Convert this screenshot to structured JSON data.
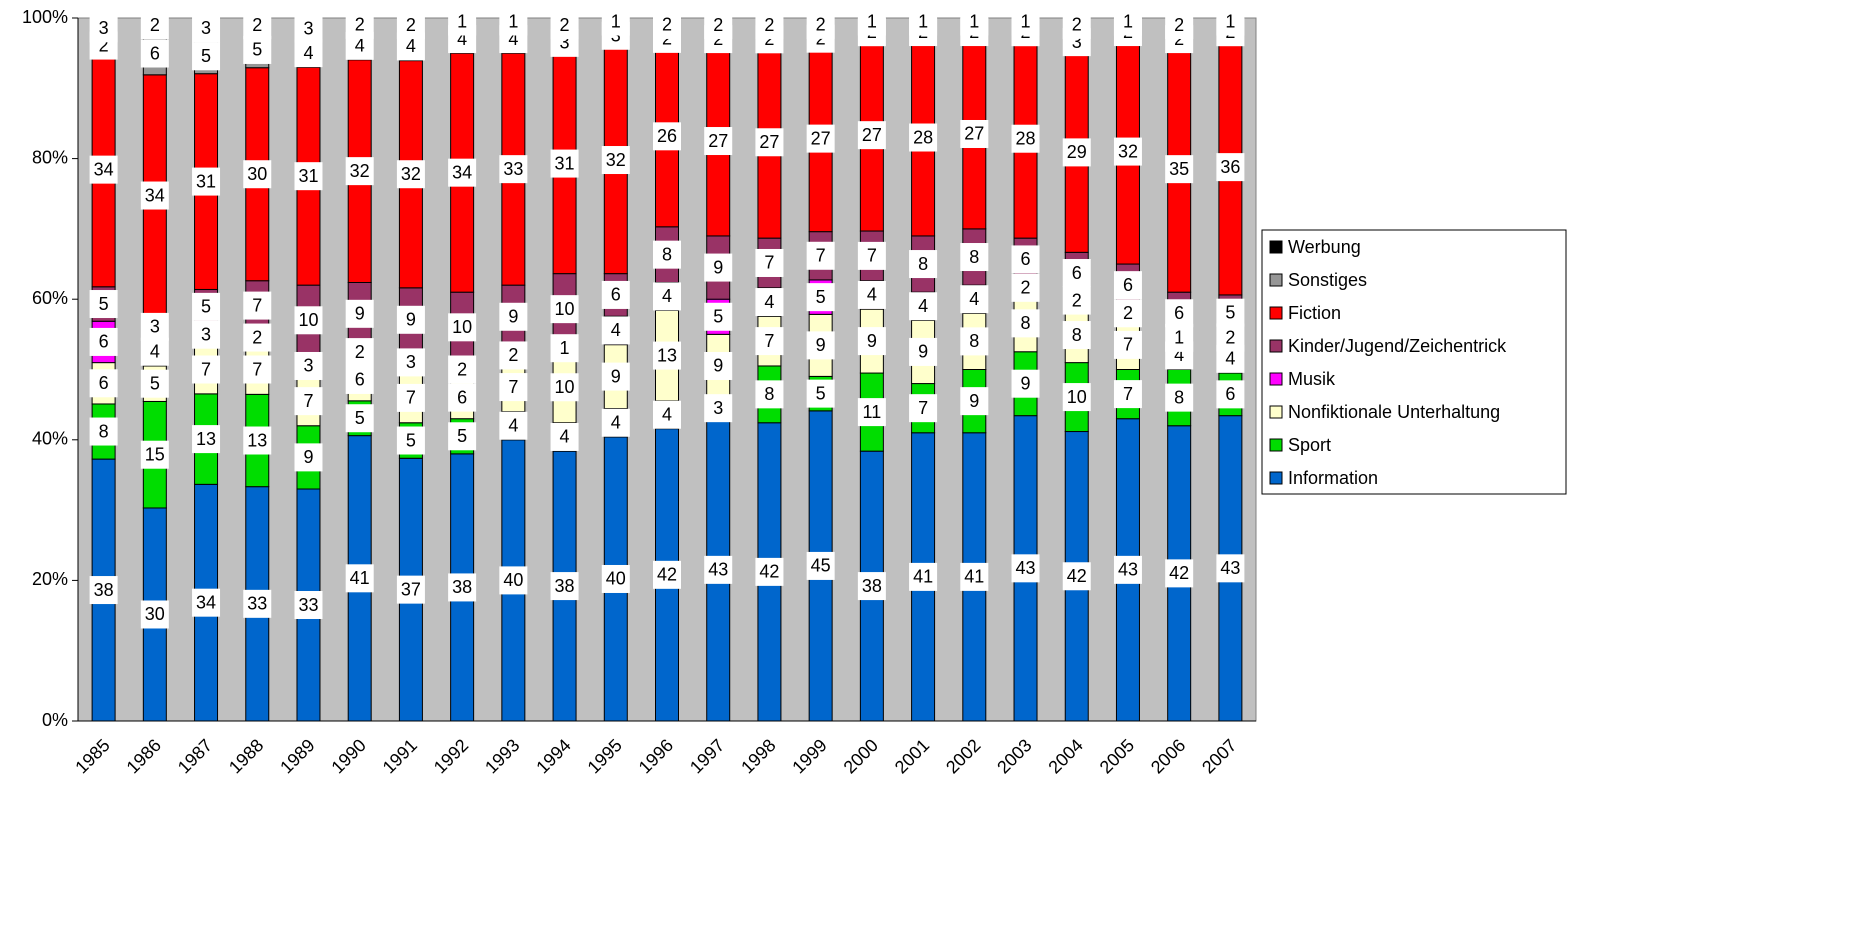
{
  "chart_data": {
    "type": "bar",
    "stacked": "percent",
    "categories": [
      "1985",
      "1986",
      "1987",
      "1988",
      "1989",
      "1990",
      "1991",
      "1992",
      "1993",
      "1994",
      "1995",
      "1996",
      "1997",
      "1998",
      "1999",
      "2000",
      "2001",
      "2002",
      "2003",
      "2004",
      "2005",
      "2006",
      "2007"
    ],
    "series": [
      {
        "name": "Information",
        "color": "#0066cc",
        "values": [
          38,
          30,
          34,
          33,
          33,
          41,
          37,
          38,
          40,
          38,
          40,
          42,
          43,
          42,
          45,
          38,
          41,
          41,
          43,
          42,
          43,
          42,
          43
        ]
      },
      {
        "name": "Sport",
        "color": "#00dd00",
        "values": [
          8,
          15,
          13,
          13,
          9,
          5,
          5,
          5,
          4,
          4,
          4,
          4,
          3,
          8,
          5,
          11,
          7,
          9,
          9,
          10,
          7,
          8,
          6
        ]
      },
      {
        "name": "Nonfiktionale Unterhaltung",
        "color": "#ffffcc",
        "values": [
          6,
          5,
          7,
          7,
          7,
          6,
          7,
          6,
          7,
          10,
          9,
          13,
          9,
          7,
          9,
          9,
          9,
          8,
          8,
          8,
          7,
          4,
          4
        ]
      },
      {
        "name": "Musik",
        "color": "#ff00ff",
        "values": [
          6,
          4,
          3,
          2,
          3,
          2,
          3,
          2,
          2,
          1,
          4,
          4,
          5,
          4,
          5,
          4,
          4,
          4,
          2,
          2,
          2,
          1,
          2
        ]
      },
      {
        "name": "Kinder/Jugend/Zeichentrick",
        "color": "#993366",
        "values": [
          5,
          3,
          5,
          7,
          10,
          9,
          9,
          10,
          9,
          10,
          6,
          8,
          9,
          7,
          7,
          7,
          8,
          8,
          6,
          6,
          6,
          6,
          5
        ]
      },
      {
        "name": "Fiction",
        "color": "#ff0000",
        "values": [
          34,
          34,
          31,
          30,
          31,
          32,
          32,
          34,
          33,
          31,
          32,
          26,
          27,
          27,
          27,
          27,
          28,
          27,
          28,
          29,
          32,
          35,
          36
        ]
      },
      {
        "name": "Sonstiges",
        "color": "#969696",
        "values": [
          2,
          6,
          5,
          5,
          4,
          4,
          4,
          4,
          4,
          3,
          3,
          2,
          2,
          2,
          2,
          2,
          2,
          2,
          2,
          3,
          2,
          2,
          2
        ]
      },
      {
        "name": "Werbung",
        "color": "#000000",
        "values": [
          3,
          2,
          3,
          2,
          3,
          2,
          2,
          1,
          1,
          2,
          1,
          2,
          2,
          2,
          2,
          1,
          1,
          1,
          1,
          2,
          1,
          2,
          1
        ]
      }
    ],
    "ylim": [
      0,
      100
    ],
    "yticks": [
      {
        "value": 0,
        "label": "0%"
      },
      {
        "value": 20,
        "label": "20%"
      },
      {
        "value": 40,
        "label": "40%"
      },
      {
        "value": 60,
        "label": "60%"
      },
      {
        "value": 80,
        "label": "80%"
      },
      {
        "value": 100,
        "label": "100%"
      }
    ],
    "legend": "right"
  }
}
